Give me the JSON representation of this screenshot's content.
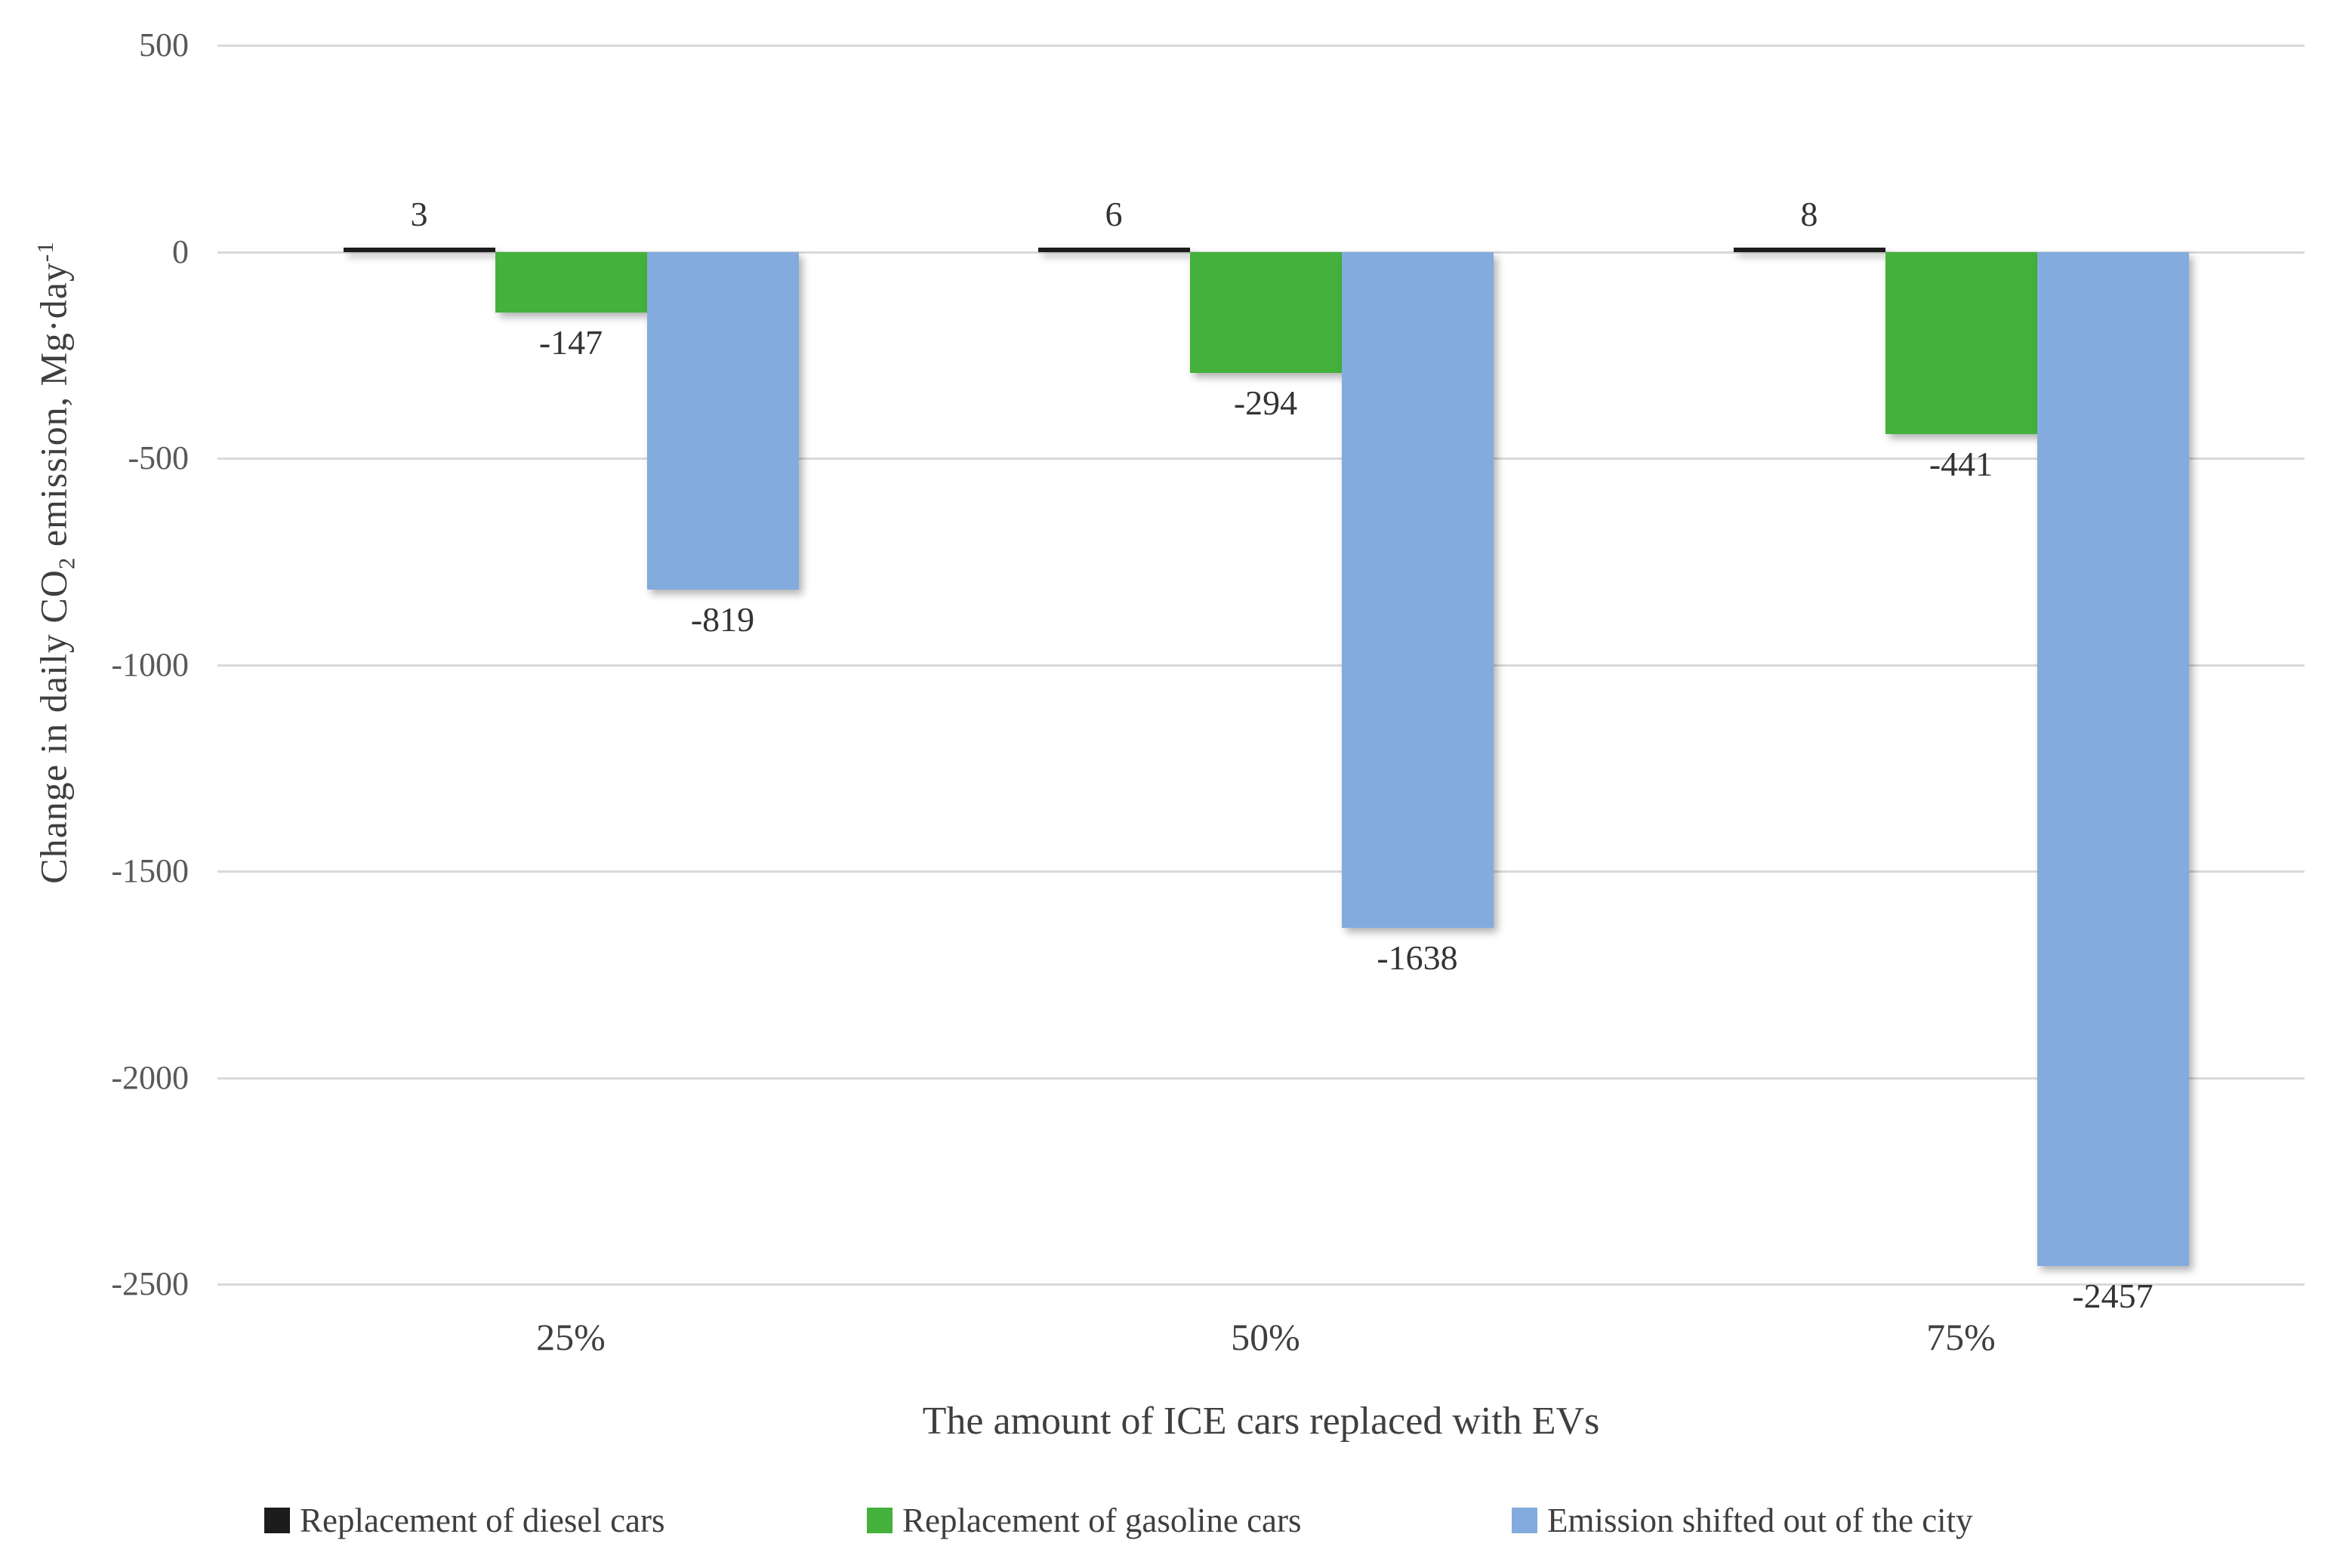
{
  "chart_data": {
    "type": "bar",
    "title": "",
    "categories": [
      "25%",
      "50%",
      "75%"
    ],
    "series": [
      {
        "name": "Replacement of diesel cars",
        "color": "#1c1c1c",
        "values": [
          3,
          6,
          8
        ]
      },
      {
        "name": "Replacement of gasoline cars",
        "color": "#43b13c",
        "values": [
          -147,
          -294,
          -441
        ]
      },
      {
        "name": "Emission shifted out of the city",
        "color": "#83abde",
        "values": [
          -819,
          -1638,
          -2457
        ]
      }
    ],
    "data_labels": {
      "diesel": [
        "3",
        "6",
        "8"
      ],
      "gasoline": [
        "-147",
        "-294",
        "-441"
      ],
      "shifted": [
        "-819",
        "-1638",
        "-2457"
      ]
    },
    "xlabel": "The amount of ICE cars replaced with EVs",
    "ylabel_text": "Change in daily CO2 emission, Mg·day-1",
    "ylabel_parts": {
      "prefix": "Change in daily CO",
      "sub": "2",
      "mid": " emission, Mg·day",
      "sup": "-1"
    },
    "yticks": [
      500,
      0,
      -500,
      -1000,
      -1500,
      -2000,
      -2500
    ],
    "ylim": [
      500,
      -2500
    ],
    "grid": true,
    "legend_position": "bottom",
    "colors": {
      "grid": "#d9d9d9",
      "tick_text": "#595959",
      "label_text": "#333333",
      "axis_title_text": "#3f3f3f",
      "background": "#ffffff"
    }
  }
}
